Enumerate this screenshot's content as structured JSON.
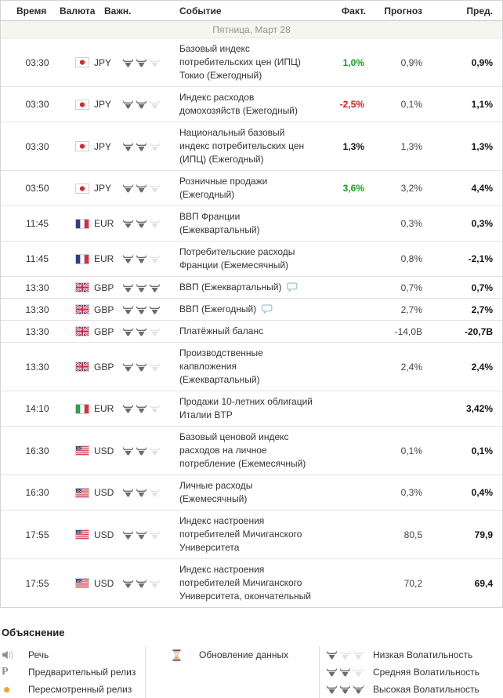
{
  "colors": {
    "actual_better": "#1f9c1f",
    "actual_worse": "#e21717",
    "date_row_bg": "#f6f5f0",
    "bull_active": "#6d6d6d",
    "bull_inactive": "#e3e3e3",
    "revised_dot": "#e9a63c"
  },
  "table": {
    "columns": [
      "Время",
      "Валюта",
      "Важн.",
      "Событие",
      "Факт.",
      "Прогноз",
      "Пред."
    ],
    "date_header": "Пятница, Март 28",
    "rows": [
      {
        "time": "03:30",
        "currency": "JPY",
        "flag": "japan",
        "importance": 2,
        "event": "Базовый индекс потребительских цен (ИПЦ) Токио (Ежегодный)",
        "has_comment": false,
        "actual": "1,0%",
        "actual_state": "better",
        "forecast": "0,9%",
        "previous": "0,9%"
      },
      {
        "time": "03:30",
        "currency": "JPY",
        "flag": "japan",
        "importance": 2,
        "event": "Индекс расходов домохозяйств (Ежегодный)",
        "has_comment": false,
        "actual": "-2,5%",
        "actual_state": "worse",
        "forecast": "0,1%",
        "previous": "1,1%"
      },
      {
        "time": "03:30",
        "currency": "JPY",
        "flag": "japan",
        "importance": 2,
        "event": "Национальный базовый индекс потребительских цен (ИПЦ) (Ежегодный)",
        "has_comment": false,
        "actual": "1,3%",
        "actual_state": "neutral",
        "forecast": "1,3%",
        "previous": "1,3%"
      },
      {
        "time": "03:50",
        "currency": "JPY",
        "flag": "japan",
        "importance": 2,
        "event": "Розничные продажи (Ежегодный)",
        "has_comment": false,
        "actual": "3,6%",
        "actual_state": "better",
        "forecast": "3,2%",
        "previous": "4,4%"
      },
      {
        "time": "11:45",
        "currency": "EUR",
        "flag": "france",
        "importance": 2,
        "event": "ВВП Франции (Ежеквартальный)",
        "has_comment": false,
        "actual": "",
        "actual_state": "",
        "forecast": "0,3%",
        "previous": "0,3%"
      },
      {
        "time": "11:45",
        "currency": "EUR",
        "flag": "france",
        "importance": 2,
        "event": "Потребительские расходы Франции (Ежемесячный)",
        "has_comment": false,
        "actual": "",
        "actual_state": "",
        "forecast": "0,8%",
        "previous": "-2,1%"
      },
      {
        "time": "13:30",
        "currency": "GBP",
        "flag": "uk",
        "importance": 3,
        "event": "ВВП (Ежеквартальный)",
        "has_comment": true,
        "actual": "",
        "actual_state": "",
        "forecast": "0,7%",
        "previous": "0,7%"
      },
      {
        "time": "13:30",
        "currency": "GBP",
        "flag": "uk",
        "importance": 3,
        "event": "ВВП (Ежегодный)",
        "has_comment": true,
        "actual": "",
        "actual_state": "",
        "forecast": "2,7%",
        "previous": "2,7%"
      },
      {
        "time": "13:30",
        "currency": "GBP",
        "flag": "uk",
        "importance": 2,
        "event": "Платёжный баланс",
        "has_comment": false,
        "actual": "",
        "actual_state": "",
        "forecast": "-14,0B",
        "previous": "-20,7B"
      },
      {
        "time": "13:30",
        "currency": "GBP",
        "flag": "uk",
        "importance": 2,
        "event": "Производственные капвложения (Ежеквартальный)",
        "has_comment": false,
        "actual": "",
        "actual_state": "",
        "forecast": "2,4%",
        "previous": "2,4%"
      },
      {
        "time": "14:10",
        "currency": "EUR",
        "flag": "italy",
        "importance": 2,
        "event": "Продажи 10-летних облигаций Италии BTP",
        "has_comment": false,
        "actual": "",
        "actual_state": "",
        "forecast": "",
        "previous": "3,42%"
      },
      {
        "time": "16:30",
        "currency": "USD",
        "flag": "usa",
        "importance": 2,
        "event": "Базовый ценовой индекс расходов на личное потребление (Ежемесячный)",
        "has_comment": false,
        "actual": "",
        "actual_state": "",
        "forecast": "0,1%",
        "previous": "0,1%"
      },
      {
        "time": "16:30",
        "currency": "USD",
        "flag": "usa",
        "importance": 2,
        "event": "Личные расходы (Ежемесячный)",
        "has_comment": false,
        "actual": "",
        "actual_state": "",
        "forecast": "0,3%",
        "previous": "0,4%"
      },
      {
        "time": "17:55",
        "currency": "USD",
        "flag": "usa",
        "importance": 2,
        "event": "Индекс настроения потребителей Мичиганского Университета",
        "has_comment": false,
        "actual": "",
        "actual_state": "",
        "forecast": "80,5",
        "previous": "79,9"
      },
      {
        "time": "17:55",
        "currency": "USD",
        "flag": "usa",
        "importance": 2,
        "event": "Индекс настроения потребителей Мичиганского Университета, окончательный",
        "has_comment": false,
        "actual": "",
        "actual_state": "",
        "forecast": "70,2",
        "previous": "69,4"
      }
    ]
  },
  "legend": {
    "title": "Объяснение",
    "col1": [
      {
        "icon": "speech",
        "label": "Речь"
      },
      {
        "icon": "preliminary",
        "label": "Предварительный релиз"
      },
      {
        "icon": "revised",
        "label": "Пересмотренный релиз"
      }
    ],
    "col2": [
      {
        "icon": "hourglass",
        "label": "Обновление данных"
      }
    ],
    "col3": [
      {
        "bulls": 1,
        "label": "Низкая Волатильность"
      },
      {
        "bulls": 2,
        "label": "Средняя Волатильность"
      },
      {
        "bulls": 3,
        "label": "Высокая Волатильность"
      }
    ]
  }
}
